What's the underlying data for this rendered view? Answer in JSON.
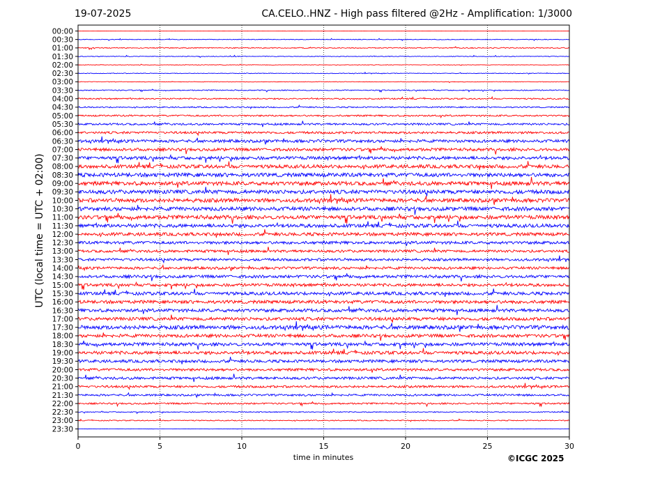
{
  "header": {
    "date": "19-07-2025",
    "title": "CA.CELO..HNZ - High pass filtered @2Hz - Amplification: 1/3000"
  },
  "footer": {
    "copyright": "©ICGC 2025"
  },
  "chart_data": {
    "type": "line",
    "title": "CA.CELO..HNZ - High pass filtered @2Hz - Amplification: 1/3000",
    "xlabel": "time in minutes",
    "ylabel": "UTC (local time = UTC + 02:00)",
    "xlim": [
      0,
      30
    ],
    "x_ticks": [
      "0",
      "5",
      "10",
      "15",
      "20",
      "25",
      "30"
    ],
    "vertical_grid": "dotted at every 5 minutes",
    "trace_colors": [
      "#ff0000",
      "#0000ff"
    ],
    "rows": [
      {
        "label": "00:00",
        "amplitude": 0.02
      },
      {
        "label": "00:30",
        "amplitude": 0.1
      },
      {
        "label": "01:00",
        "amplitude": 0.15
      },
      {
        "label": "01:30",
        "amplitude": 0.1
      },
      {
        "label": "02:00",
        "amplitude": 0.08
      },
      {
        "label": "02:30",
        "amplitude": 0.1
      },
      {
        "label": "03:00",
        "amplitude": 0.08
      },
      {
        "label": "03:30",
        "amplitude": 0.15
      },
      {
        "label": "04:00",
        "amplitude": 0.2
      },
      {
        "label": "04:30",
        "amplitude": 0.2
      },
      {
        "label": "05:00",
        "amplitude": 0.25
      },
      {
        "label": "05:30",
        "amplitude": 0.3
      },
      {
        "label": "06:00",
        "amplitude": 0.35
      },
      {
        "label": "06:30",
        "amplitude": 0.45
      },
      {
        "label": "07:00",
        "amplitude": 0.45
      },
      {
        "label": "07:30",
        "amplitude": 0.5
      },
      {
        "label": "08:00",
        "amplitude": 0.55
      },
      {
        "label": "08:30",
        "amplitude": 0.6
      },
      {
        "label": "09:00",
        "amplitude": 0.6
      },
      {
        "label": "09:30",
        "amplitude": 0.6
      },
      {
        "label": "10:00",
        "amplitude": 0.6
      },
      {
        "label": "10:30",
        "amplitude": 0.6
      },
      {
        "label": "11:00",
        "amplitude": 0.6
      },
      {
        "label": "11:30",
        "amplitude": 0.55
      },
      {
        "label": "12:00",
        "amplitude": 0.5
      },
      {
        "label": "12:30",
        "amplitude": 0.45
      },
      {
        "label": "13:00",
        "amplitude": 0.4
      },
      {
        "label": "13:30",
        "amplitude": 0.4
      },
      {
        "label": "14:00",
        "amplitude": 0.4
      },
      {
        "label": "14:30",
        "amplitude": 0.45
      },
      {
        "label": "15:00",
        "amplitude": 0.45
      },
      {
        "label": "15:30",
        "amplitude": 0.5
      },
      {
        "label": "16:00",
        "amplitude": 0.5
      },
      {
        "label": "16:30",
        "amplitude": 0.5
      },
      {
        "label": "17:00",
        "amplitude": 0.5
      },
      {
        "label": "17:30",
        "amplitude": 0.6
      },
      {
        "label": "18:00",
        "amplitude": 0.5
      },
      {
        "label": "18:30",
        "amplitude": 0.5
      },
      {
        "label": "19:00",
        "amplitude": 0.5
      },
      {
        "label": "19:30",
        "amplitude": 0.45
      },
      {
        "label": "20:00",
        "amplitude": 0.4
      },
      {
        "label": "20:30",
        "amplitude": 0.4
      },
      {
        "label": "21:00",
        "amplitude": 0.35
      },
      {
        "label": "21:30",
        "amplitude": 0.3
      },
      {
        "label": "22:00",
        "amplitude": 0.25
      },
      {
        "label": "22:30",
        "amplitude": 0.15
      },
      {
        "label": "23:00",
        "amplitude": 0.15
      },
      {
        "label": "23:30",
        "amplitude": 0.02
      }
    ]
  }
}
